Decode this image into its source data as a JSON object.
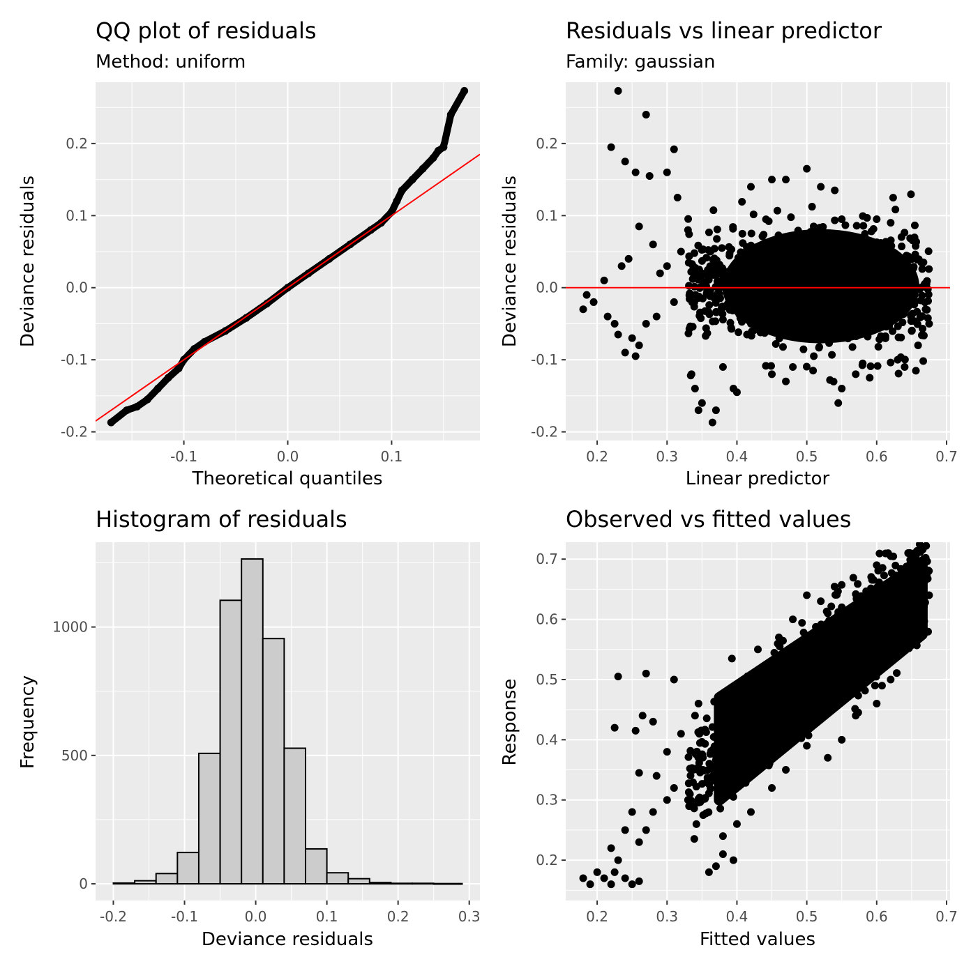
{
  "chart_data": [
    {
      "type": "line",
      "title": "QQ plot of residuals",
      "subtitle": "Method: uniform",
      "xlabel": "Theoretical quantiles",
      "ylabel": "Deviance residuals",
      "xlim": [
        -0.185,
        0.185
      ],
      "ylim": [
        -0.212,
        0.285
      ],
      "xticks": [
        -0.1,
        0.0,
        0.1
      ],
      "xtick_labels": [
        "-0.1",
        "0.0",
        "0.1"
      ],
      "yticks": [
        -0.2,
        -0.1,
        0.0,
        0.1,
        0.2
      ],
      "ytick_labels": [
        "-0.2",
        "-0.1",
        "0.0",
        "0.1",
        "0.2"
      ],
      "grid": true,
      "reference_line": {
        "slope": 1.0,
        "intercept": 0.0,
        "color": "#ff0000"
      },
      "series": [
        {
          "points": [
            [
              -0.17,
              -0.187
            ],
            [
              -0.155,
              -0.17
            ],
            [
              -0.145,
              -0.165
            ],
            [
              -0.135,
              -0.155
            ],
            [
              -0.125,
              -0.14
            ],
            [
              -0.115,
              -0.125
            ],
            [
              -0.105,
              -0.112
            ],
            [
              -0.1,
              -0.1
            ],
            [
              -0.09,
              -0.085
            ],
            [
              -0.08,
              -0.075
            ],
            [
              -0.06,
              -0.06
            ],
            [
              -0.04,
              -0.042
            ],
            [
              -0.02,
              -0.022
            ],
            [
              0.0,
              0.0
            ],
            [
              0.02,
              0.02
            ],
            [
              0.04,
              0.04
            ],
            [
              0.06,
              0.06
            ],
            [
              0.08,
              0.08
            ],
            [
              0.09,
              0.09
            ],
            [
              0.1,
              0.105
            ],
            [
              0.105,
              0.12
            ],
            [
              0.11,
              0.135
            ],
            [
              0.12,
              0.15
            ],
            [
              0.13,
              0.165
            ],
            [
              0.14,
              0.18
            ],
            [
              0.145,
              0.19
            ],
            [
              0.15,
              0.195
            ],
            [
              0.157,
              0.24
            ],
            [
              0.17,
              0.273
            ]
          ]
        }
      ]
    },
    {
      "type": "scatter",
      "title": "Residuals vs linear predictor",
      "subtitle": "Family: gaussian",
      "xlabel": "Linear predictor",
      "ylabel": "Deviance residuals",
      "xlim": [
        0.155,
        0.705
      ],
      "ylim": [
        -0.212,
        0.285
      ],
      "xticks": [
        0.2,
        0.3,
        0.4,
        0.5,
        0.6,
        0.7
      ],
      "xtick_labels": [
        "0.2",
        "0.3",
        "0.4",
        "0.5",
        "0.6",
        "0.7"
      ],
      "yticks": [
        -0.2,
        -0.1,
        0.0,
        0.1,
        0.2
      ],
      "ytick_labels": [
        "-0.2",
        "-0.1",
        "0.0",
        "0.1",
        "0.2"
      ],
      "grid": true,
      "reference_line": {
        "slope": 0.0,
        "intercept": 0.0,
        "color": "#ff0000"
      },
      "dense_cloud": {
        "x": [
          0.375,
          0.665
        ],
        "y": [
          -0.075,
          0.095
        ]
      },
      "points": [
        [
          0.23,
          0.273
        ],
        [
          0.27,
          0.24
        ],
        [
          0.22,
          0.195
        ],
        [
          0.31,
          0.192
        ],
        [
          0.24,
          0.175
        ],
        [
          0.255,
          0.16
        ],
        [
          0.275,
          0.155
        ],
        [
          0.3,
          0.16
        ],
        [
          0.315,
          0.125
        ],
        [
          0.26,
          0.085
        ],
        [
          0.28,
          0.06
        ],
        [
          0.245,
          0.04
        ],
        [
          0.235,
          0.03
        ],
        [
          0.21,
          0.01
        ],
        [
          0.185,
          -0.01
        ],
        [
          0.18,
          -0.03
        ],
        [
          0.195,
          -0.02
        ],
        [
          0.215,
          -0.04
        ],
        [
          0.225,
          -0.05
        ],
        [
          0.23,
          -0.065
        ],
        [
          0.25,
          -0.07
        ],
        [
          0.24,
          -0.09
        ],
        [
          0.255,
          -0.095
        ],
        [
          0.26,
          -0.08
        ],
        [
          0.27,
          -0.05
        ],
        [
          0.285,
          -0.04
        ],
        [
          0.29,
          0.02
        ],
        [
          0.3,
          0.03
        ],
        [
          0.31,
          -0.02
        ],
        [
          0.32,
          0.05
        ],
        [
          0.33,
          0.08
        ],
        [
          0.335,
          -0.12
        ],
        [
          0.34,
          -0.14
        ],
        [
          0.345,
          -0.17
        ],
        [
          0.35,
          -0.16
        ],
        [
          0.365,
          -0.187
        ],
        [
          0.37,
          -0.17
        ],
        [
          0.38,
          -0.11
        ],
        [
          0.395,
          -0.14
        ],
        [
          0.4,
          -0.145
        ],
        [
          0.42,
          0.14
        ],
        [
          0.45,
          0.15
        ],
        [
          0.47,
          0.15
        ],
        [
          0.5,
          0.165
        ],
        [
          0.52,
          0.14
        ],
        [
          0.54,
          0.135
        ],
        [
          0.55,
          0.095
        ],
        [
          0.6,
          0.095
        ],
        [
          0.62,
          0.09
        ],
        [
          0.63,
          -0.1
        ],
        [
          0.64,
          -0.11
        ],
        [
          0.65,
          -0.06
        ],
        [
          0.66,
          0.0
        ],
        [
          0.67,
          -0.03
        ],
        [
          0.675,
          -0.05
        ],
        [
          0.545,
          -0.16
        ],
        [
          0.55,
          -0.14
        ],
        [
          0.57,
          -0.12
        ],
        [
          0.59,
          -0.125
        ],
        [
          0.58,
          -0.105
        ],
        [
          0.51,
          -0.095
        ],
        [
          0.45,
          -0.12
        ],
        [
          0.47,
          -0.13
        ],
        [
          0.48,
          -0.11
        ]
      ]
    },
    {
      "type": "bar",
      "title": "Histogram of residuals",
      "xlabel": "Deviance residuals",
      "ylabel": "Frequency",
      "xlim": [
        -0.225,
        0.315
      ],
      "ylim": [
        -65,
        1330
      ],
      "xticks": [
        -0.2,
        -0.1,
        0.0,
        0.1,
        0.2,
        0.3
      ],
      "xtick_labels": [
        "-0.2",
        "-0.1",
        "0.0",
        "0.1",
        "0.2",
        "0.3"
      ],
      "yticks": [
        0,
        500,
        1000
      ],
      "ytick_labels": [
        "0",
        "500",
        "1000"
      ],
      "grid": true,
      "bin_edges": [
        -0.2,
        -0.17,
        -0.14,
        -0.11,
        -0.08,
        -0.05,
        -0.02,
        0.01,
        0.04,
        0.07,
        0.1,
        0.13,
        0.16,
        0.19,
        0.22,
        0.25,
        0.29
      ],
      "values": [
        3,
        12,
        40,
        122,
        508,
        1104,
        1265,
        955,
        528,
        136,
        43,
        20,
        5,
        2,
        2,
        1
      ],
      "fill": "#cccccc",
      "stroke": "#000000"
    },
    {
      "type": "scatter",
      "title": "Observed vs fitted values",
      "xlabel": "Fitted values",
      "ylabel": "Response",
      "xlim": [
        0.155,
        0.705
      ],
      "ylim": [
        0.133,
        0.728
      ],
      "xticks": [
        0.2,
        0.3,
        0.4,
        0.5,
        0.6,
        0.7
      ],
      "xtick_labels": [
        "0.2",
        "0.3",
        "0.4",
        "0.5",
        "0.6",
        "0.7"
      ],
      "yticks": [
        0.2,
        0.3,
        0.4,
        0.5,
        0.6,
        0.7
      ],
      "ytick_labels": [
        "0.2",
        "0.3",
        "0.4",
        "0.5",
        "0.6",
        "0.7"
      ],
      "grid": true,
      "dense_cloud": {
        "x": [
          0.375,
          0.665
        ],
        "lower": [
          0.3,
          0.575
        ],
        "upper": [
          0.47,
          0.695
        ]
      },
      "points": [
        [
          0.18,
          0.17
        ],
        [
          0.19,
          0.16
        ],
        [
          0.2,
          0.18
        ],
        [
          0.21,
          0.17
        ],
        [
          0.22,
          0.16
        ],
        [
          0.225,
          0.18
        ],
        [
          0.23,
          0.2
        ],
        [
          0.24,
          0.17
        ],
        [
          0.25,
          0.16
        ],
        [
          0.26,
          0.165
        ],
        [
          0.22,
          0.22
        ],
        [
          0.24,
          0.25
        ],
        [
          0.26,
          0.23
        ],
        [
          0.27,
          0.25
        ],
        [
          0.25,
          0.28
        ],
        [
          0.28,
          0.28
        ],
        [
          0.3,
          0.3
        ],
        [
          0.31,
          0.32
        ],
        [
          0.33,
          0.3
        ],
        [
          0.23,
          0.505
        ],
        [
          0.27,
          0.51
        ],
        [
          0.31,
          0.5
        ],
        [
          0.225,
          0.42
        ],
        [
          0.255,
          0.415
        ],
        [
          0.265,
          0.44
        ],
        [
          0.28,
          0.43
        ],
        [
          0.26,
          0.345
        ],
        [
          0.285,
          0.34
        ],
        [
          0.3,
          0.38
        ],
        [
          0.32,
          0.41
        ],
        [
          0.34,
          0.44
        ],
        [
          0.345,
          0.46
        ],
        [
          0.36,
          0.18
        ],
        [
          0.37,
          0.19
        ],
        [
          0.38,
          0.21
        ],
        [
          0.395,
          0.2
        ],
        [
          0.35,
          0.3
        ],
        [
          0.38,
          0.24
        ],
        [
          0.4,
          0.26
        ],
        [
          0.42,
          0.28
        ],
        [
          0.45,
          0.32
        ],
        [
          0.47,
          0.35
        ],
        [
          0.5,
          0.39
        ],
        [
          0.53,
          0.37
        ],
        [
          0.55,
          0.4
        ],
        [
          0.57,
          0.44
        ],
        [
          0.6,
          0.46
        ],
        [
          0.62,
          0.5
        ],
        [
          0.5,
          0.64
        ],
        [
          0.52,
          0.63
        ],
        [
          0.53,
          0.61
        ],
        [
          0.55,
          0.62
        ],
        [
          0.43,
          0.55
        ],
        [
          0.46,
          0.57
        ],
        [
          0.48,
          0.6
        ],
        [
          0.6,
          0.69
        ],
        [
          0.62,
          0.705
        ],
        [
          0.645,
          0.71
        ],
        [
          0.66,
          0.68
        ],
        [
          0.67,
          0.67
        ],
        [
          0.675,
          0.64
        ],
        [
          0.665,
          0.66
        ]
      ]
    }
  ],
  "colors": {
    "panel": "#ebebeb",
    "grid": "#ffffff",
    "points": "#000000",
    "ref_line": "#ff0000"
  }
}
